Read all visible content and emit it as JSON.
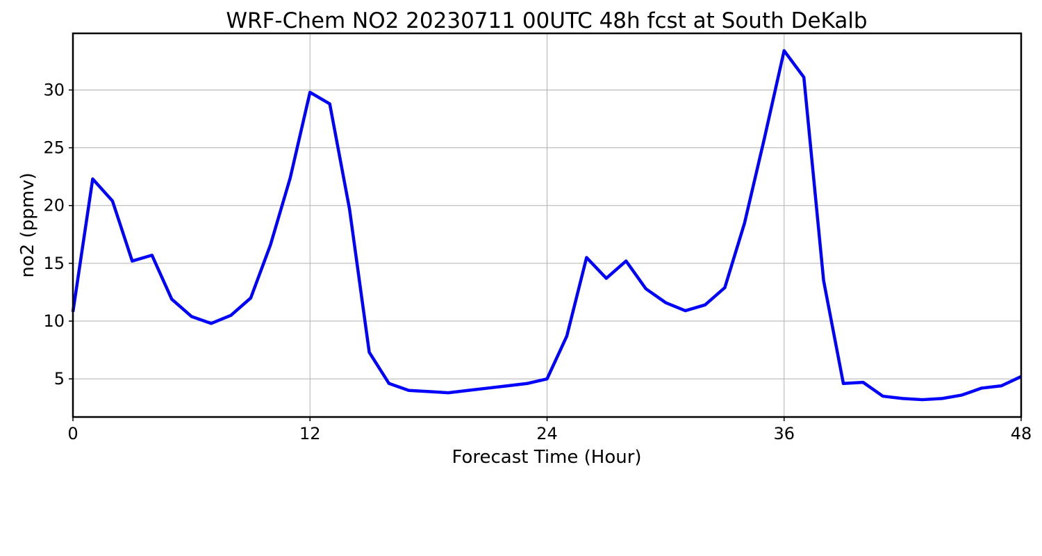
{
  "chart_data": {
    "type": "line",
    "title": "WRF-Chem NO2  20230711 00UTC 48h fcst at South DeKalb",
    "xlabel": "Forecast Time (Hour)",
    "ylabel": "no2  (ppmv)",
    "xlim": [
      0,
      48
    ],
    "ylim": [
      1.7,
      34.9
    ],
    "xticks": [
      0,
      12,
      24,
      36,
      48
    ],
    "yticks": [
      5,
      10,
      15,
      20,
      25,
      30
    ],
    "grid": true,
    "line_color": "#0000ff",
    "series": [
      {
        "x": [
          0,
          1,
          2,
          3,
          4,
          5,
          6,
          7,
          8,
          9,
          10,
          11,
          12,
          13,
          14,
          15,
          16,
          17,
          18,
          19,
          20,
          21,
          22,
          23,
          24,
          25,
          26,
          27,
          28,
          29,
          30,
          31,
          32,
          33,
          34,
          35,
          36,
          37,
          38,
          39,
          40,
          41,
          42,
          43,
          44,
          45,
          46,
          47,
          48
        ],
        "values": [
          10.8,
          22.3,
          20.4,
          15.2,
          15.7,
          11.9,
          10.4,
          9.8,
          10.5,
          12.0,
          16.6,
          22.4,
          29.8,
          28.8,
          19.7,
          7.3,
          4.6,
          4.0,
          3.9,
          3.8,
          4.0,
          4.2,
          4.4,
          4.6,
          5.0,
          8.7,
          15.5,
          13.7,
          15.2,
          12.8,
          11.6,
          10.9,
          11.4,
          12.9,
          18.5,
          25.8,
          33.4,
          31.1,
          13.5,
          4.6,
          4.7,
          3.5,
          3.3,
          3.2,
          3.3,
          3.6,
          4.2,
          4.4,
          5.2
        ]
      }
    ]
  }
}
